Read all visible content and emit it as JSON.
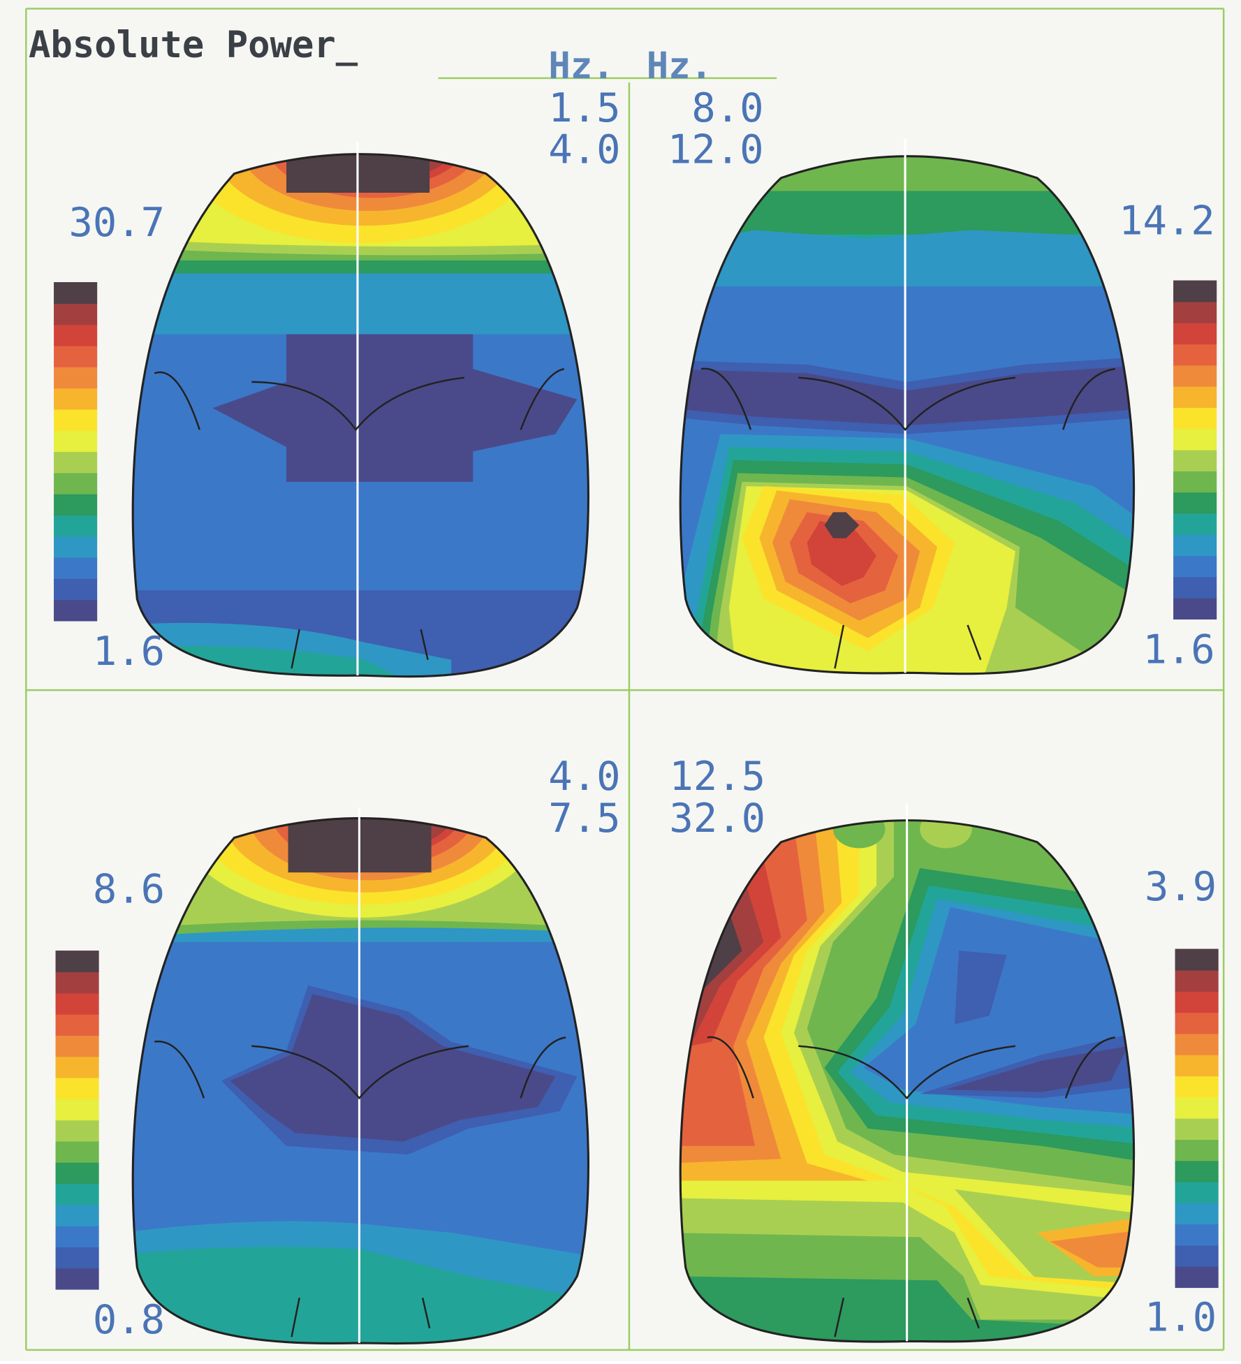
{
  "title": "Absolute Power_",
  "header": {
    "hz_left": "Hz.",
    "hz_right": "Hz."
  },
  "colors": {
    "frame": "#9ccc65",
    "scale_text": "#4a74b6",
    "palette": [
      "#4a4a8a",
      "#3f5fb0",
      "#3c78c8",
      "#2f97c4",
      "#22a598",
      "#2d9a5e",
      "#6fb64f",
      "#a9cf52",
      "#e7ef3f",
      "#fbe32c",
      "#f7b52d",
      "#ef8a3b",
      "#e5623f",
      "#d24439",
      "#a3403f",
      "#4f3f46"
    ]
  },
  "chart_data": [
    {
      "type": "heatmap",
      "name": "topomap-delta",
      "freq_low": "1.5",
      "freq_high": "4.0",
      "scale_max": "30.7",
      "scale_min": "1.6",
      "colorbar_side": "left",
      "grid": false,
      "hotspot": "frontal"
    },
    {
      "type": "heatmap",
      "name": "topomap-alpha",
      "freq_low": "8.0",
      "freq_high": "12.0",
      "scale_max": "14.2",
      "scale_min": "1.6",
      "colorbar_side": "right",
      "grid": false,
      "hotspot": "left parieto-occipital"
    },
    {
      "type": "heatmap",
      "name": "topomap-theta",
      "freq_low": "4.0",
      "freq_high": "7.5",
      "scale_max": "8.6",
      "scale_min": "0.8",
      "colorbar_side": "left",
      "grid": false,
      "hotspot": "frontal"
    },
    {
      "type": "heatmap",
      "name": "topomap-beta",
      "freq_low": "12.5",
      "freq_high": "32.0",
      "scale_max": "3.9",
      "scale_min": "1.0",
      "colorbar_side": "right",
      "grid": false,
      "hotspot": "left temporal"
    }
  ]
}
